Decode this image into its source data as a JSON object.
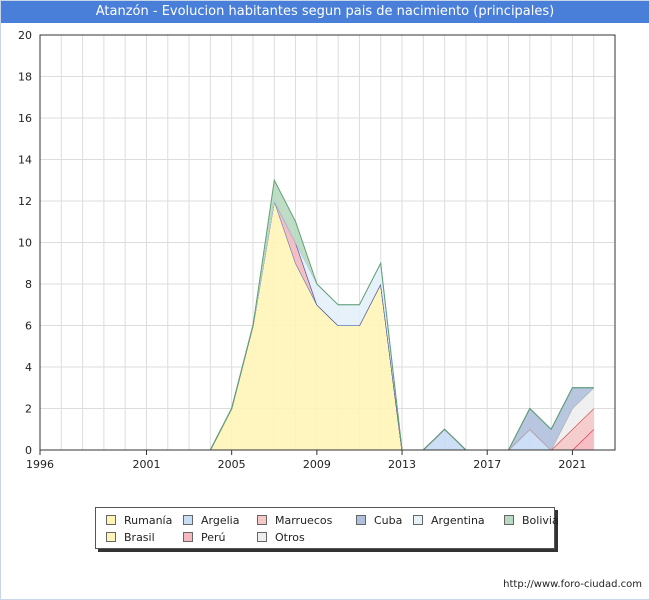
{
  "header": {
    "title": "Atanzón - Evolucion habitantes segun pais de nacimiento (principales)"
  },
  "footer": {
    "url": "http://www.foro-ciudad.com"
  },
  "chart_data": {
    "type": "area",
    "stacked": true,
    "title": "Atanzón - Evolucion habitantes segun pais de nacimiento (principales)",
    "xlim": [
      1996,
      2023
    ],
    "ylim": [
      0,
      20
    ],
    "x_ticks": [
      1996,
      2001,
      2005,
      2009,
      2013,
      2017,
      2021
    ],
    "y_ticks": [
      0,
      2,
      4,
      6,
      8,
      10,
      12,
      14,
      16,
      18,
      20
    ],
    "grid": true,
    "legend_position": "bottom",
    "x": [
      1996,
      1997,
      1998,
      1999,
      2000,
      2001,
      2002,
      2003,
      2004,
      2005,
      2006,
      2007,
      2008,
      2009,
      2010,
      2011,
      2012,
      2013,
      2014,
      2015,
      2016,
      2017,
      2018,
      2019,
      2020,
      2021,
      2022
    ],
    "series": [
      {
        "name": "Brasil",
        "color": "#fff4b8",
        "edge": "#e6d200",
        "values": [
          0,
          0,
          0,
          0,
          0,
          0,
          0,
          0,
          0,
          2,
          6,
          12,
          9,
          7,
          6,
          6,
          8,
          0,
          0,
          0,
          0,
          0,
          0,
          0,
          0,
          0,
          0
        ]
      },
      {
        "name": "Rumanía",
        "color": "#fff4b8",
        "edge": "#e6d200",
        "values": [
          0,
          0,
          0,
          0,
          0,
          0,
          0,
          0,
          0,
          0,
          0,
          0,
          0,
          0,
          0,
          0,
          0,
          0,
          0,
          0,
          0,
          0,
          0,
          0,
          0,
          0,
          0
        ]
      },
      {
        "name": "Argelia",
        "color": "#c8dcf5",
        "edge": "#4a7fd9",
        "values": [
          0,
          0,
          0,
          0,
          0,
          0,
          0,
          0,
          0,
          0,
          0,
          0,
          0,
          0,
          0,
          0,
          0,
          0,
          0,
          1,
          0,
          0,
          0,
          1,
          0,
          0,
          0
        ]
      },
      {
        "name": "Perú",
        "color": "#f5b8c0",
        "edge": "#e8192c",
        "values": [
          0,
          0,
          0,
          0,
          0,
          0,
          0,
          0,
          0,
          0,
          0,
          0,
          1,
          0,
          0,
          0,
          0,
          0,
          0,
          0,
          0,
          0,
          0,
          0,
          0,
          0,
          1
        ]
      },
      {
        "name": "Marruecos",
        "color": "#f5c8c8",
        "edge": "#d03030",
        "values": [
          0,
          0,
          0,
          0,
          0,
          0,
          0,
          0,
          0,
          0,
          0,
          0,
          0,
          0,
          0,
          0,
          0,
          0,
          0,
          0,
          0,
          0,
          0,
          0,
          0,
          1,
          1
        ]
      },
      {
        "name": "Otros",
        "color": "#eeeeee",
        "edge": "#b0b0b0",
        "values": [
          0,
          0,
          0,
          0,
          0,
          0,
          0,
          0,
          0,
          0,
          0,
          0,
          0,
          0,
          0,
          0,
          0,
          0,
          0,
          0,
          0,
          0,
          0,
          0,
          0,
          1,
          1
        ]
      },
      {
        "name": "Cuba",
        "color": "#b0c0dc",
        "edge": "#3050a0",
        "values": [
          0,
          0,
          0,
          0,
          0,
          0,
          0,
          0,
          0,
          0,
          0,
          0,
          0,
          0,
          0,
          0,
          0,
          0,
          0,
          0,
          0,
          0,
          0,
          1,
          1,
          1,
          0
        ]
      },
      {
        "name": "Argentina",
        "color": "#e4f0fa",
        "edge": "#a8c8e8",
        "values": [
          0,
          0,
          0,
          0,
          0,
          0,
          0,
          0,
          0,
          0,
          0,
          0,
          0,
          1,
          1,
          1,
          1,
          0,
          0,
          0,
          0,
          0,
          0,
          0,
          0,
          0,
          0
        ]
      },
      {
        "name": "Bolivia",
        "color": "#b8d8c0",
        "edge": "#60a070",
        "values": [
          0,
          0,
          0,
          0,
          0,
          0,
          0,
          0,
          0,
          0,
          0,
          1,
          1,
          0,
          0,
          0,
          0,
          0,
          0,
          0,
          0,
          0,
          0,
          0,
          0,
          0,
          0
        ]
      }
    ],
    "legend": [
      {
        "name": "Rumanía",
        "color": "#fff4b8"
      },
      {
        "name": "Argelia",
        "color": "#c8dcf5"
      },
      {
        "name": "Marruecos",
        "color": "#f5c8c8"
      },
      {
        "name": "Cuba",
        "color": "#b0c0dc"
      },
      {
        "name": "Argentina",
        "color": "#e4f0fa"
      },
      {
        "name": "Bolivia",
        "color": "#b8d8c0"
      },
      {
        "name": "Brasil",
        "color": "#fff4b8"
      },
      {
        "name": "Perú",
        "color": "#f5b8c0"
      },
      {
        "name": "Otros",
        "color": "#eeeeee"
      }
    ]
  }
}
